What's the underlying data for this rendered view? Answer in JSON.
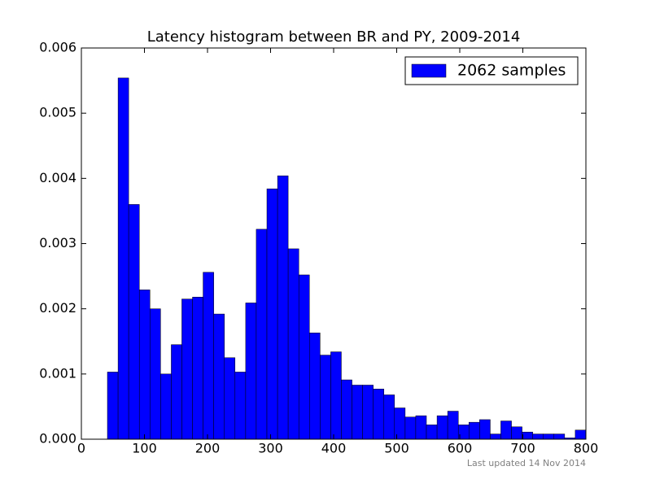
{
  "chart_data": {
    "type": "histogram",
    "title": "Latency histogram between BR and PY, 2009-2014",
    "footnote": "Last updated 14 Nov 2014",
    "series": [
      {
        "name": "2062 samples",
        "color": "#0000ff",
        "bins": [
          41.3,
          58.2,
          75.0,
          91.9,
          108.7,
          125.6,
          142.5,
          159.3,
          176.2,
          193.0,
          209.9,
          226.8,
          243.6,
          260.5,
          277.3,
          294.2,
          311.1,
          327.9,
          344.8,
          361.6,
          378.5,
          395.4,
          412.2,
          429.1,
          445.9,
          462.8,
          479.7,
          496.5,
          513.4,
          530.2,
          547.1,
          564.0,
          580.8,
          597.7,
          614.5,
          631.4,
          648.3,
          665.1,
          682.0,
          698.8,
          715.7,
          732.6,
          749.4,
          766.3,
          783.1,
          800.0
        ],
        "values": [
          0.00103,
          0.00554,
          0.0036,
          0.00229,
          0.002,
          0.001,
          0.00145,
          0.00215,
          0.00218,
          0.00256,
          0.00192,
          0.00125,
          0.00103,
          0.00209,
          0.00322,
          0.00384,
          0.00404,
          0.00292,
          0.00252,
          0.00163,
          0.00129,
          0.00134,
          0.00091,
          0.00083,
          0.00083,
          0.00077,
          0.00068,
          0.00048,
          0.00034,
          0.00036,
          0.00022,
          0.00036,
          0.00043,
          0.00022,
          0.00026,
          0.0003,
          8e-05,
          0.00028,
          0.00019,
          0.00011,
          8e-05,
          8e-05,
          8e-05,
          2e-05,
          0.00014
        ]
      }
    ],
    "xlim": [
      0,
      800
    ],
    "xticks": [
      0,
      100,
      200,
      300,
      400,
      500,
      600,
      700,
      800
    ],
    "ylim": [
      0,
      0.006
    ],
    "yticks": [
      {
        "value": 0,
        "label": "0.000"
      },
      {
        "value": 0.001,
        "label": "0.001"
      },
      {
        "value": 0.002,
        "label": "0.002"
      },
      {
        "value": 0.003,
        "label": "0.003"
      },
      {
        "value": 0.004,
        "label": "0.004"
      },
      {
        "value": 0.005,
        "label": "0.005"
      },
      {
        "value": 0.006,
        "label": "0.006"
      }
    ],
    "legend": "upper right",
    "grid": false
  }
}
